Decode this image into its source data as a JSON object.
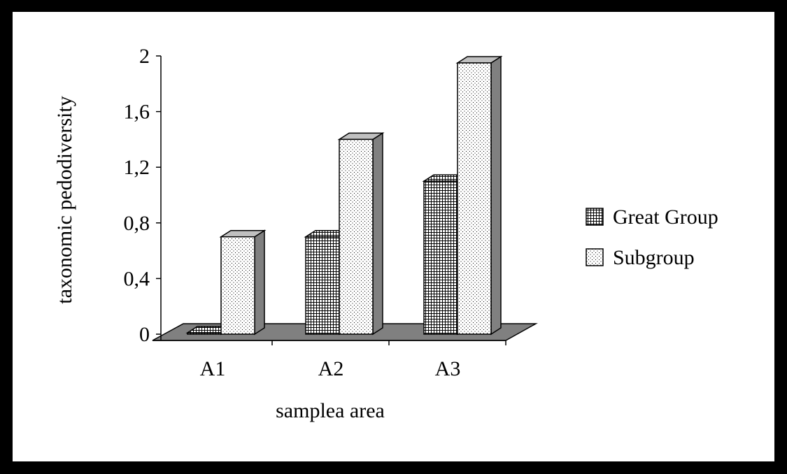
{
  "chart_data": {
    "type": "bar",
    "style": "3d-clustered-column",
    "categories": [
      "A1",
      "A2",
      "A3"
    ],
    "series": [
      {
        "name": "Great Group",
        "values": [
          0.0,
          0.7,
          1.1
        ],
        "pattern": "grid"
      },
      {
        "name": "Subgroup",
        "values": [
          0.7,
          1.4,
          1.95
        ],
        "pattern": "dots"
      }
    ],
    "yticks": [
      "0",
      "0,4",
      "0,8",
      "1,2",
      "1,6",
      "2"
    ],
    "ylim": [
      0,
      2
    ],
    "xlabel": "samplea area",
    "ylabel": "taxonomic pedodiversity",
    "legend_position": "right",
    "grid": false,
    "colors": {
      "floor": "#808080",
      "bar_face": "#ffffff",
      "bar_side": "#808080",
      "bar_top": "#c0c0c0"
    }
  }
}
